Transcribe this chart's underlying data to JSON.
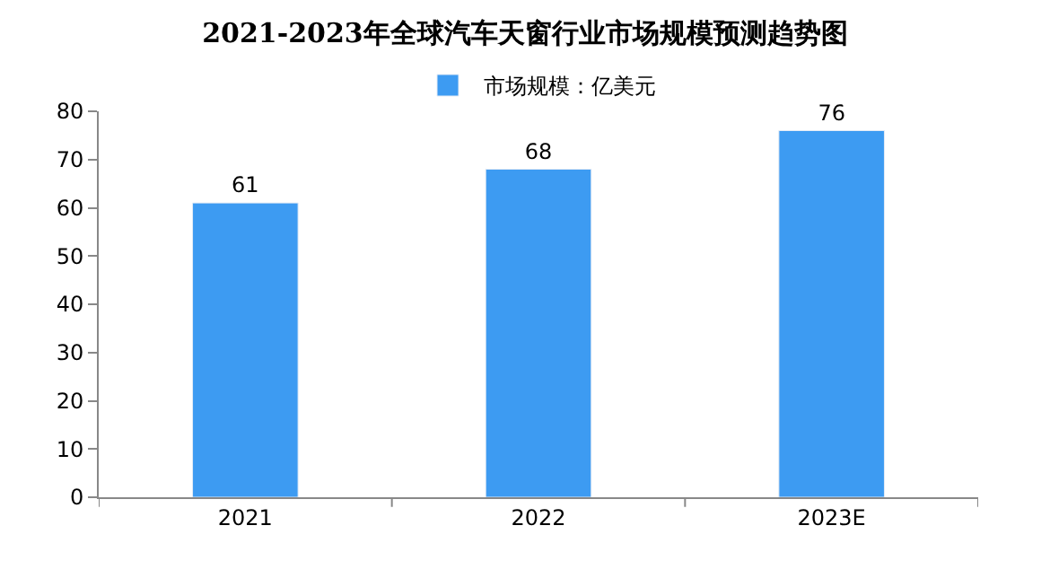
{
  "chart_data": {
    "type": "bar",
    "title": "2021-2023年全球汽车天窗行业市场规模预测趋势图",
    "categories": [
      "2021",
      "2022",
      "2023E"
    ],
    "series": [
      {
        "name": "市场规模：亿美元",
        "color": "#3d9bf2",
        "values": [
          61,
          68,
          76
        ]
      }
    ],
    "ylim": [
      0,
      80
    ],
    "yticks": [
      0,
      10,
      20,
      30,
      40,
      50,
      60,
      70,
      80
    ],
    "data_labels": true,
    "legend": "top"
  }
}
